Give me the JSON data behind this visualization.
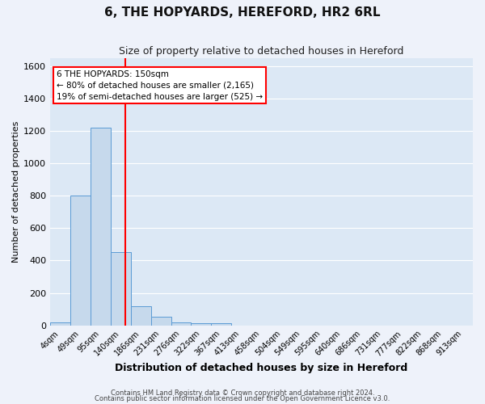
{
  "title": "6, THE HOPYARDS, HEREFORD, HR2 6RL",
  "subtitle": "Size of property relative to detached houses in Hereford",
  "xlabel": "Distribution of detached houses by size in Hereford",
  "ylabel": "Number of detached properties",
  "bar_labels": [
    "4sqm",
    "49sqm",
    "95sqm",
    "140sqm",
    "186sqm",
    "231sqm",
    "276sqm",
    "322sqm",
    "367sqm",
    "413sqm",
    "458sqm",
    "504sqm",
    "549sqm",
    "595sqm",
    "640sqm",
    "686sqm",
    "731sqm",
    "777sqm",
    "822sqm",
    "868sqm",
    "913sqm"
  ],
  "bar_values": [
    20,
    800,
    1220,
    450,
    120,
    55,
    20,
    15,
    15,
    0,
    0,
    0,
    0,
    0,
    0,
    0,
    0,
    0,
    0,
    0,
    0
  ],
  "bar_color": "#c6d9ec",
  "bar_edge_color": "#5b9bd5",
  "vline_color": "red",
  "vline_x": 3.22,
  "ylim": [
    0,
    1650
  ],
  "yticks": [
    0,
    200,
    400,
    600,
    800,
    1000,
    1200,
    1400,
    1600
  ],
  "annotation_text": "6 THE HOPYARDS: 150sqm\n← 80% of detached houses are smaller (2,165)\n19% of semi-detached houses are larger (525) →",
  "footnote1": "Contains HM Land Registry data © Crown copyright and database right 2024.",
  "footnote2": "Contains public sector information licensed under the Open Government Licence v3.0.",
  "bg_color": "#eef2fa",
  "plot_bg_color": "#dce8f5",
  "grid_color": "white",
  "annotation_box_color": "white",
  "annotation_box_edge": "red",
  "title_fontsize": 11,
  "subtitle_fontsize": 9,
  "xlabel_fontsize": 9,
  "ylabel_fontsize": 8,
  "tick_fontsize": 7,
  "annot_fontsize": 7.5,
  "footnote_fontsize": 6
}
